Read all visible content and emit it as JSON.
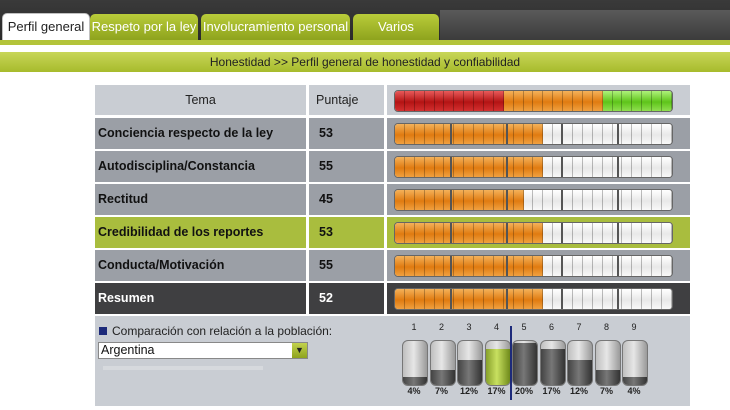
{
  "tabs": [
    {
      "label": "Perfil general",
      "active": true
    },
    {
      "label": "Respeto por la ley",
      "active": false
    },
    {
      "label": "Involucramiento personal",
      "active": false
    },
    {
      "label": "Varios",
      "active": false
    }
  ],
  "subtitle": "Honestidad >> Perfil general de honestidad y confiabilidad",
  "table": {
    "header": {
      "tema": "Tema",
      "puntaje": "Puntaje"
    },
    "rows": [
      {
        "tema": "Conciencia respecto de la ley",
        "puntaje": "53",
        "fill": 0.53,
        "style": "gray"
      },
      {
        "tema": "Autodisciplina/Constancia",
        "puntaje": "55",
        "fill": 0.55,
        "style": "gray"
      },
      {
        "tema": "Rectitud",
        "puntaje": "45",
        "fill": 0.45,
        "style": "gray"
      },
      {
        "tema": "Credibilidad de los reportes",
        "puntaje": "53",
        "fill": 0.53,
        "style": "highlight"
      },
      {
        "tema": "Conducta/Motivación",
        "puntaje": "55",
        "fill": 0.55,
        "style": "gray"
      },
      {
        "tema": "Resumen",
        "puntaje": "52",
        "fill": 0.52,
        "style": "dark"
      }
    ]
  },
  "comparison": {
    "label": "Comparación con relación a la población:",
    "select_value": "Argentina",
    "population": [
      {
        "n": "1",
        "pct": "4%",
        "level": 0.04
      },
      {
        "n": "2",
        "pct": "7%",
        "level": 0.07
      },
      {
        "n": "3",
        "pct": "12%",
        "level": 0.12
      },
      {
        "n": "4",
        "pct": "17%",
        "level": 0.17
      },
      {
        "n": "5",
        "pct": "20%",
        "level": 0.2
      },
      {
        "n": "6",
        "pct": "17%",
        "level": 0.17
      },
      {
        "n": "7",
        "pct": "12%",
        "level": 0.12
      },
      {
        "n": "8",
        "pct": "7%",
        "level": 0.07
      },
      {
        "n": "9",
        "pct": "4%",
        "level": 0.04
      }
    ],
    "highlighted_index": 4
  },
  "colors": {
    "olive": "#a9bd3e",
    "orange": "#e07b10",
    "red": "#b41414",
    "green": "#5ec41a",
    "dark_row": "#3f3f41",
    "marker": "#1d2a7a"
  }
}
